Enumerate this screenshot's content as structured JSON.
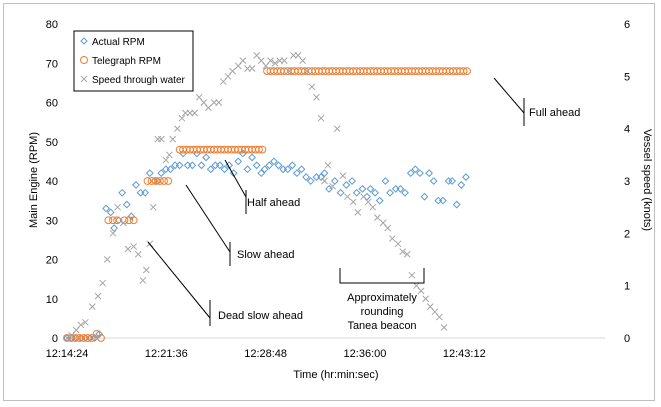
{
  "chart_data": {
    "type": "scatter",
    "xlabel": "Time (hr:min:sec)",
    "ylabel": "Main Engine (RPM)",
    "y2label": "Vessel speed (knots)",
    "xlim_seconds": [
      0,
      2340
    ],
    "ylim": [
      0,
      80
    ],
    "y2lim": [
      0,
      6
    ],
    "grid": false,
    "legend_position": "top-left",
    "x_ticks": [
      {
        "s": 0,
        "label": "12:14:24"
      },
      {
        "s": 432,
        "label": "12:21:36"
      },
      {
        "s": 864,
        "label": "12:28:48"
      },
      {
        "s": 1296,
        "label": "12:36:00"
      },
      {
        "s": 1728,
        "label": "12:43:12"
      }
    ],
    "y_ticks": [
      0,
      10,
      20,
      30,
      40,
      50,
      60,
      70,
      80
    ],
    "y2_ticks": [
      0,
      1,
      2,
      3,
      4,
      5,
      6
    ],
    "series": [
      {
        "name": "Actual RPM",
        "axis": "left",
        "color": "#5b9bd5",
        "marker": "diamond",
        "points": [
          [
            0,
            0
          ],
          [
            20,
            0
          ],
          [
            40,
            0
          ],
          [
            60,
            0
          ],
          [
            80,
            0
          ],
          [
            100,
            0
          ],
          [
            120,
            0
          ],
          [
            140,
            1
          ],
          [
            170,
            33
          ],
          [
            190,
            32
          ],
          [
            205,
            28
          ],
          [
            225,
            30
          ],
          [
            240,
            37
          ],
          [
            260,
            34
          ],
          [
            280,
            31
          ],
          [
            300,
            39
          ],
          [
            320,
            37
          ],
          [
            340,
            37
          ],
          [
            360,
            42
          ],
          [
            380,
            40
          ],
          [
            395,
            40
          ],
          [
            410,
            42
          ],
          [
            430,
            43
          ],
          [
            450,
            43
          ],
          [
            470,
            44
          ],
          [
            490,
            44
          ],
          [
            505,
            47
          ],
          [
            525,
            44
          ],
          [
            545,
            44
          ],
          [
            565,
            47
          ],
          [
            585,
            44
          ],
          [
            605,
            46
          ],
          [
            625,
            43
          ],
          [
            645,
            44
          ],
          [
            665,
            44
          ],
          [
            685,
            43
          ],
          [
            705,
            44
          ],
          [
            725,
            42
          ],
          [
            745,
            45
          ],
          [
            765,
            47
          ],
          [
            785,
            43
          ],
          [
            805,
            46
          ],
          [
            825,
            44
          ],
          [
            845,
            42
          ],
          [
            860,
            43
          ],
          [
            880,
            44
          ],
          [
            900,
            45
          ],
          [
            920,
            44
          ],
          [
            940,
            43
          ],
          [
            960,
            43
          ],
          [
            980,
            44
          ],
          [
            1000,
            42
          ],
          [
            1020,
            43
          ],
          [
            1040,
            41
          ],
          [
            1060,
            40
          ],
          [
            1085,
            41
          ],
          [
            1105,
            41
          ],
          [
            1120,
            42
          ],
          [
            1140,
            38
          ],
          [
            1165,
            40
          ],
          [
            1190,
            37
          ],
          [
            1215,
            39
          ],
          [
            1240,
            40
          ],
          [
            1260,
            37
          ],
          [
            1285,
            38
          ],
          [
            1305,
            36
          ],
          [
            1320,
            38
          ],
          [
            1340,
            37
          ],
          [
            1360,
            35
          ],
          [
            1385,
            40
          ],
          [
            1405,
            37
          ],
          [
            1430,
            38
          ],
          [
            1450,
            38
          ],
          [
            1470,
            37
          ],
          [
            1495,
            42
          ],
          [
            1515,
            43
          ],
          [
            1535,
            42
          ],
          [
            1555,
            36
          ],
          [
            1575,
            42
          ],
          [
            1595,
            40
          ],
          [
            1615,
            35
          ],
          [
            1635,
            35
          ],
          [
            1660,
            40
          ],
          [
            1675,
            40
          ],
          [
            1695,
            34
          ],
          [
            1715,
            39
          ],
          [
            1735,
            41
          ]
        ]
      },
      {
        "name": "Telegraph RPM",
        "axis": "left",
        "color": "#ed7d31",
        "marker": "circle",
        "points": [
          [
            0,
            0
          ],
          [
            18,
            0
          ],
          [
            36,
            0
          ],
          [
            54,
            0
          ],
          [
            72,
            0
          ],
          [
            90,
            0
          ],
          [
            108,
            0
          ],
          [
            128,
            1
          ],
          [
            148,
            0
          ],
          [
            180,
            30
          ],
          [
            200,
            30
          ],
          [
            218,
            30
          ],
          [
            250,
            30
          ],
          [
            270,
            30
          ],
          [
            290,
            30
          ],
          [
            350,
            40
          ],
          [
            368,
            40
          ],
          [
            386,
            40
          ],
          [
            404,
            40
          ],
          [
            422,
            40
          ],
          [
            440,
            40
          ],
          [
            490,
            48
          ],
          [
            505,
            48
          ],
          [
            520,
            48
          ],
          [
            535,
            48
          ],
          [
            550,
            48
          ],
          [
            565,
            48
          ],
          [
            580,
            48
          ],
          [
            595,
            48
          ],
          [
            610,
            48
          ],
          [
            625,
            48
          ],
          [
            640,
            48
          ],
          [
            655,
            48
          ],
          [
            670,
            48
          ],
          [
            685,
            48
          ],
          [
            700,
            48
          ],
          [
            715,
            48
          ],
          [
            730,
            48
          ],
          [
            745,
            48
          ],
          [
            760,
            48
          ],
          [
            775,
            48
          ],
          [
            790,
            48
          ],
          [
            805,
            48
          ],
          [
            820,
            48
          ],
          [
            835,
            48
          ],
          [
            850,
            48
          ],
          [
            870,
            68
          ],
          [
            885,
            68
          ],
          [
            900,
            68
          ],
          [
            915,
            68
          ],
          [
            930,
            68
          ],
          [
            945,
            68
          ],
          [
            960,
            68
          ],
          [
            975,
            68
          ],
          [
            990,
            68
          ],
          [
            1005,
            68
          ],
          [
            1020,
            68
          ],
          [
            1035,
            68
          ],
          [
            1050,
            68
          ],
          [
            1065,
            68
          ],
          [
            1080,
            68
          ],
          [
            1095,
            68
          ],
          [
            1110,
            68
          ],
          [
            1125,
            68
          ],
          [
            1140,
            68
          ],
          [
            1155,
            68
          ],
          [
            1170,
            68
          ],
          [
            1185,
            68
          ],
          [
            1200,
            68
          ],
          [
            1215,
            68
          ],
          [
            1230,
            68
          ],
          [
            1245,
            68
          ],
          [
            1260,
            68
          ],
          [
            1275,
            68
          ],
          [
            1290,
            68
          ],
          [
            1305,
            68
          ],
          [
            1320,
            68
          ],
          [
            1335,
            68
          ],
          [
            1350,
            68
          ],
          [
            1365,
            68
          ],
          [
            1380,
            68
          ],
          [
            1395,
            68
          ],
          [
            1410,
            68
          ],
          [
            1425,
            68
          ],
          [
            1440,
            68
          ],
          [
            1455,
            68
          ],
          [
            1470,
            68
          ],
          [
            1485,
            68
          ],
          [
            1500,
            68
          ],
          [
            1515,
            68
          ],
          [
            1530,
            68
          ],
          [
            1545,
            68
          ],
          [
            1560,
            68
          ],
          [
            1575,
            68
          ],
          [
            1590,
            68
          ],
          [
            1605,
            68
          ],
          [
            1620,
            68
          ],
          [
            1635,
            68
          ],
          [
            1650,
            68
          ],
          [
            1665,
            68
          ],
          [
            1680,
            68
          ],
          [
            1695,
            68
          ],
          [
            1710,
            68
          ],
          [
            1725,
            68
          ],
          [
            1740,
            68
          ]
        ]
      },
      {
        "name": "Speed through water",
        "axis": "right",
        "color": "#a5a5a5",
        "marker": "x",
        "points": [
          [
            0,
            0
          ],
          [
            20,
            0.05
          ],
          [
            40,
            0.15
          ],
          [
            60,
            0.25
          ],
          [
            80,
            0.3
          ],
          [
            110,
            0.6
          ],
          [
            135,
            0.8
          ],
          [
            155,
            1.05
          ],
          [
            175,
            1.5
          ],
          [
            200,
            2.0
          ],
          [
            220,
            2.5
          ],
          [
            245,
            2.2
          ],
          [
            265,
            1.7
          ],
          [
            290,
            1.75
          ],
          [
            310,
            1.6
          ],
          [
            330,
            1.1
          ],
          [
            345,
            1.3
          ],
          [
            360,
            1.8
          ],
          [
            375,
            2.5
          ],
          [
            395,
            3.8
          ],
          [
            410,
            3.8
          ],
          [
            430,
            3.4
          ],
          [
            445,
            3.5
          ],
          [
            460,
            3.8
          ],
          [
            480,
            4.0
          ],
          [
            500,
            4.2
          ],
          [
            515,
            4.3
          ],
          [
            535,
            4.3
          ],
          [
            555,
            4.3
          ],
          [
            575,
            4.6
          ],
          [
            595,
            4.5
          ],
          [
            615,
            4.4
          ],
          [
            640,
            4.5
          ],
          [
            660,
            4.5
          ],
          [
            680,
            4.9
          ],
          [
            700,
            5.0
          ],
          [
            720,
            5.1
          ],
          [
            745,
            5.2
          ],
          [
            765,
            5.3
          ],
          [
            785,
            5.15
          ],
          [
            805,
            5.15
          ],
          [
            825,
            5.4
          ],
          [
            845,
            5.3
          ],
          [
            865,
            5.2
          ],
          [
            885,
            5.3
          ],
          [
            905,
            5.25
          ],
          [
            925,
            5.3
          ],
          [
            945,
            5.3
          ],
          [
            965,
            5.1
          ],
          [
            985,
            5.4
          ],
          [
            1005,
            5.4
          ],
          [
            1025,
            5.3
          ],
          [
            1045,
            5.1
          ],
          [
            1065,
            4.8
          ],
          [
            1085,
            4.6
          ],
          [
            1105,
            4.2
          ],
          [
            1120,
            3.0
          ],
          [
            1135,
            3.3
          ],
          [
            1155,
            2.9
          ],
          [
            1175,
            4.0
          ],
          [
            1200,
            3.1
          ],
          [
            1220,
            2.7
          ],
          [
            1245,
            2.6
          ],
          [
            1265,
            2.4
          ],
          [
            1290,
            2.7
          ],
          [
            1310,
            2.6
          ],
          [
            1330,
            2.5
          ],
          [
            1350,
            2.3
          ],
          [
            1375,
            2.2
          ],
          [
            1395,
            2.1
          ],
          [
            1415,
            1.9
          ],
          [
            1440,
            1.8
          ],
          [
            1460,
            1.65
          ],
          [
            1480,
            1.6
          ],
          [
            1500,
            1.2
          ],
          [
            1520,
            1.0
          ],
          [
            1540,
            0.9
          ],
          [
            1560,
            0.75
          ],
          [
            1580,
            0.6
          ],
          [
            1600,
            0.5
          ],
          [
            1620,
            0.4
          ],
          [
            1640,
            0.2
          ]
        ]
      }
    ],
    "annotations": [
      {
        "text": "Dead slow ahead"
      },
      {
        "text": "Slow ahead"
      },
      {
        "text": "Half ahead"
      },
      {
        "text": "Full ahead"
      },
      {
        "text_lines": [
          "Approximately",
          "rounding",
          "Tanea beacon"
        ]
      }
    ]
  }
}
